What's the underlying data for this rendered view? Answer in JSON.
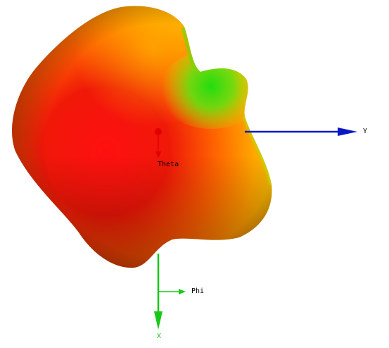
{
  "scene": {
    "colors": {
      "background": "#ffffff",
      "surface_high": "#ff1010",
      "surface_mid": "#ff8a00",
      "surface_low": "#22dd10",
      "surface_shadow": "#6a0000",
      "y_axis": "#0a18c8",
      "x_axis": "#18c818",
      "theta_marker": "#e00000"
    },
    "labels": {
      "y_axis": "Y",
      "x_axis": "X",
      "theta": "Theta",
      "phi": "Phi"
    }
  }
}
